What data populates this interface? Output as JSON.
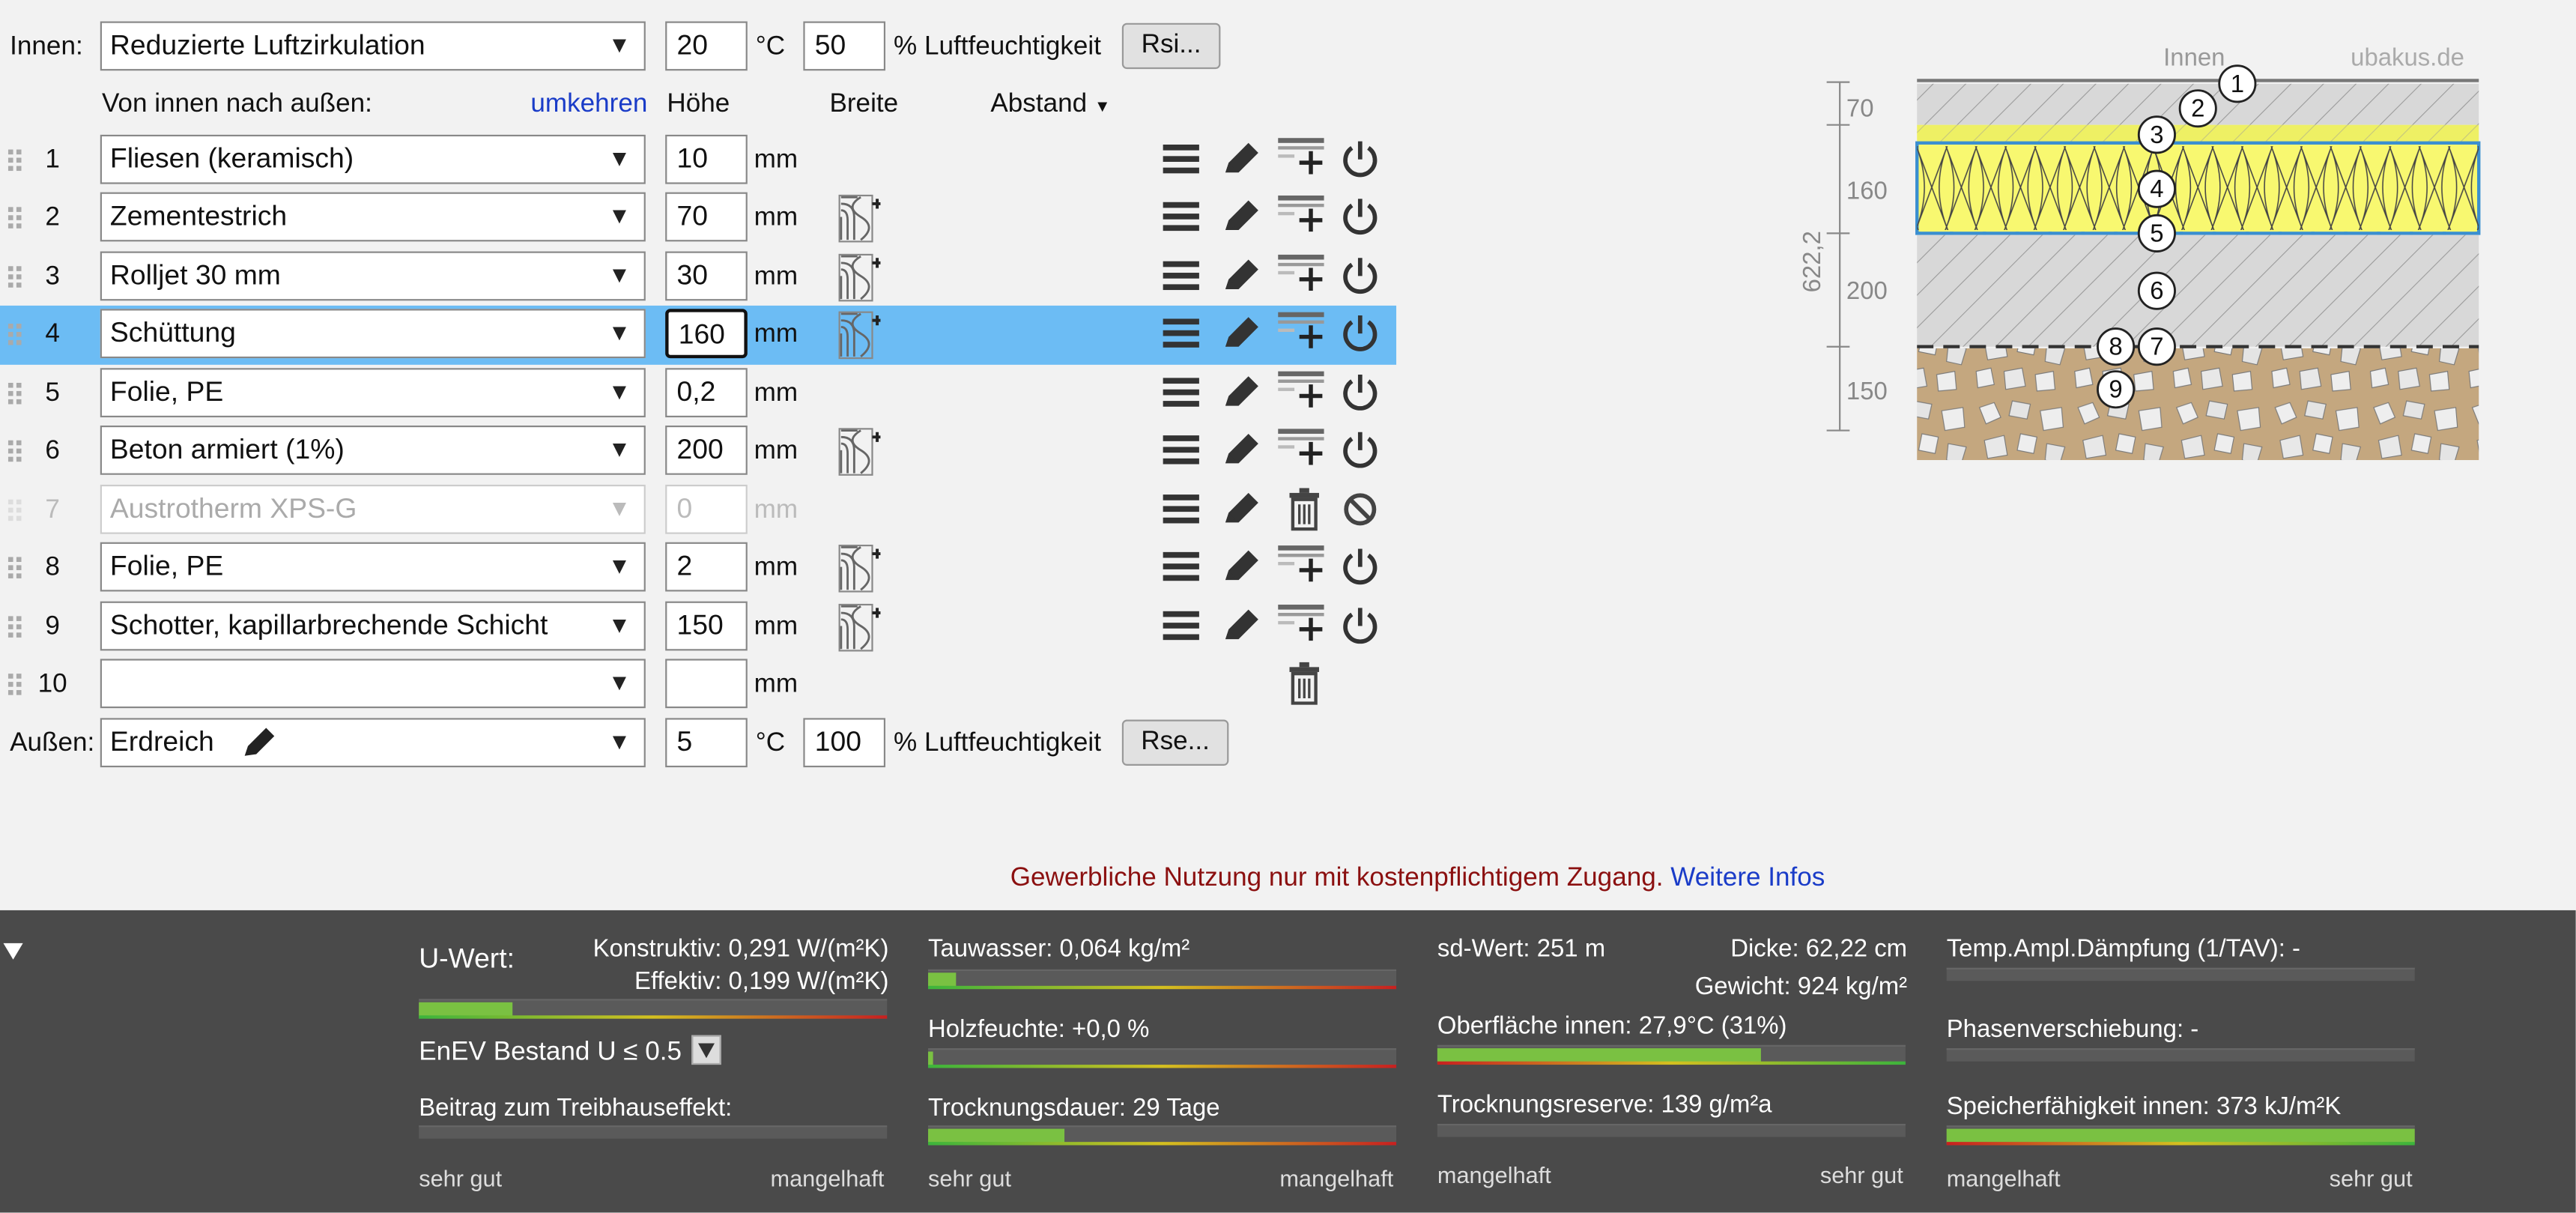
{
  "inside": {
    "label": "Innen:",
    "condition": "Reduzierte Luftzirkulation",
    "temp": "20",
    "temp_unit": "°C",
    "humidity": "50",
    "humidity_unit": "% Luftfeuchtigkeit",
    "rsi_button": "Rsi..."
  },
  "header": {
    "direction": "Von innen nach außen:",
    "reverse_link": "umkehren",
    "col_height": "Höhe",
    "col_width": "Breite",
    "col_distance": "Abstand"
  },
  "layers": [
    {
      "num": "1",
      "material": "Fliesen (keramisch)",
      "thickness": "10",
      "unit": "mm",
      "active": true,
      "width_icon": false,
      "selected": false
    },
    {
      "num": "2",
      "material": "Zementestrich",
      "thickness": "70",
      "unit": "mm",
      "active": true,
      "width_icon": true,
      "selected": false
    },
    {
      "num": "3",
      "material": "Rolljet 30 mm",
      "thickness": "30",
      "unit": "mm",
      "active": true,
      "width_icon": true,
      "selected": false
    },
    {
      "num": "4",
      "material": "Schüttung",
      "thickness": "160",
      "unit": "mm",
      "active": true,
      "width_icon": true,
      "selected": true
    },
    {
      "num": "5",
      "material": "Folie, PE",
      "thickness": "0,2",
      "unit": "mm",
      "active": true,
      "width_icon": false,
      "selected": false
    },
    {
      "num": "6",
      "material": "Beton armiert (1%)",
      "thickness": "200",
      "unit": "mm",
      "active": true,
      "width_icon": true,
      "selected": false
    },
    {
      "num": "7",
      "material": "Austrotherm XPS-G",
      "thickness": "0",
      "unit": "mm",
      "active": false,
      "width_icon": false,
      "selected": false
    },
    {
      "num": "8",
      "material": "Folie, PE",
      "thickness": "2",
      "unit": "mm",
      "active": true,
      "width_icon": true,
      "selected": false
    },
    {
      "num": "9",
      "material": "Schotter, kapillarbrechende Schicht",
      "thickness": "150",
      "unit": "mm",
      "active": true,
      "width_icon": true,
      "selected": false
    },
    {
      "num": "10",
      "material": "",
      "thickness": "",
      "unit": "mm",
      "active": true,
      "width_icon": false,
      "selected": false,
      "empty": true
    }
  ],
  "outside": {
    "label": "Außen:",
    "condition": "Erdreich",
    "temp": "5",
    "temp_unit": "°C",
    "humidity": "100",
    "humidity_unit": "% Luftfeuchtigkeit",
    "rse_button": "Rse..."
  },
  "notice": {
    "text": "Gewerbliche Nutzung nur mit kostenpflichtigem Zugang.",
    "link": "Weitere Infos"
  },
  "diagram": {
    "inside_label": "Innen",
    "brand": "ubakus.de",
    "total": "622,2",
    "dims": [
      "70",
      "160",
      "200",
      "150"
    ],
    "markers": [
      "1",
      "2",
      "3",
      "4",
      "5",
      "6",
      "7",
      "8",
      "9"
    ]
  },
  "results": {
    "uwert_label": "U-Wert:",
    "konstruktiv": "Konstruktiv: 0,291 W/(m²K)",
    "effektiv": "Effektiv: 0,199 W/(m²K)",
    "uwert_fill": 0.2,
    "enev": "EnEV Bestand U ≤ 0.5",
    "treibhaus": "Beitrag zum Treibhauseffekt:",
    "tauwasser": "Tauwasser: 0,064 kg/m²",
    "tauwasser_fill": 0.06,
    "holzfeuchte": "Holzfeuchte: +0,0 %",
    "holzfeuchte_fill": 0.01,
    "trocknung": "Trocknungsdauer: 29 Tage",
    "trocknung_fill": 0.29,
    "sdwert": "sd-Wert: 251 m",
    "dicke": "Dicke: 62,22 cm",
    "gewicht": "Gewicht: 924 kg/m²",
    "oberflaeche": "Oberfläche innen: 27,9°C (31%)",
    "oberflaeche_fill": 0.69,
    "trocknungsreserve": "Trocknungsreserve: 139 g/m²a",
    "tav": "Temp.Ampl.Dämpfung (1/TAV): -",
    "phase": "Phasenverschiebung: -",
    "speicher": "Speicherfähigkeit innen: 373 kJ/m²K",
    "speicher_fill": 1.0,
    "sehr_gut": "sehr gut",
    "mangelhaft": "mangelhaft"
  }
}
